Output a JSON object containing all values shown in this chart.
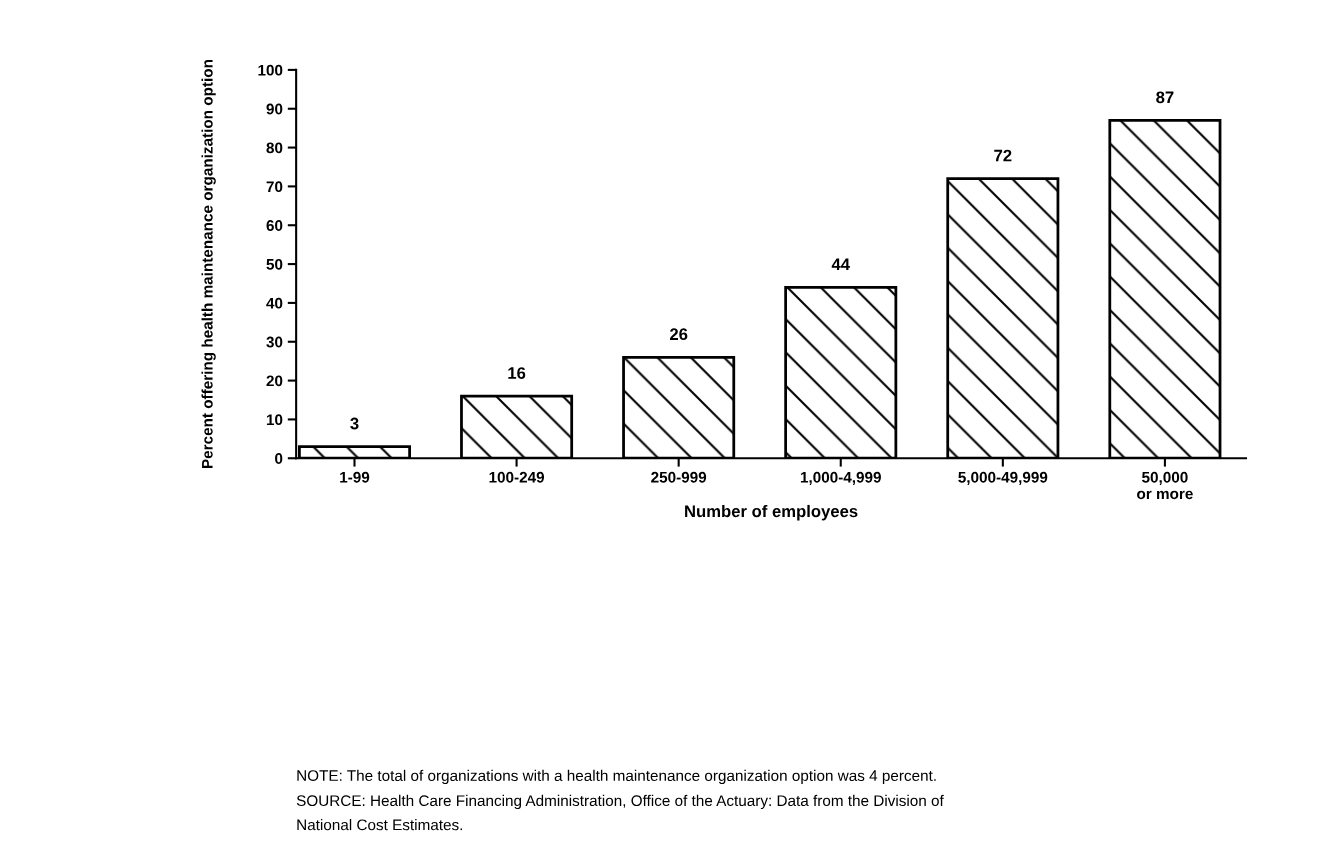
{
  "chart_data": {
    "type": "bar",
    "categories": [
      "1-99",
      "100-249",
      "250-999",
      "1,000-4,999",
      "5,000-49,999",
      "50,000\nor more"
    ],
    "values": [
      3,
      16,
      26,
      44,
      72,
      87
    ],
    "color": "#000000",
    "data_labels": true,
    "xlabel": "Number of employees",
    "ylabel": "Percent offering health maintenance organization option",
    "ylim": [
      0,
      100
    ],
    "yticks": [
      0,
      10,
      20,
      30,
      40,
      50,
      60,
      70,
      80,
      90,
      100
    ],
    "grid": false,
    "legend": false,
    "annotations": [
      "NOTE: The total of organizations with a health maintenance organization option was 4 percent.",
      "SOURCE: Health Care Financing Administration, Office of the Actuary: Data from the Division of\nNational Cost Estimates."
    ]
  }
}
